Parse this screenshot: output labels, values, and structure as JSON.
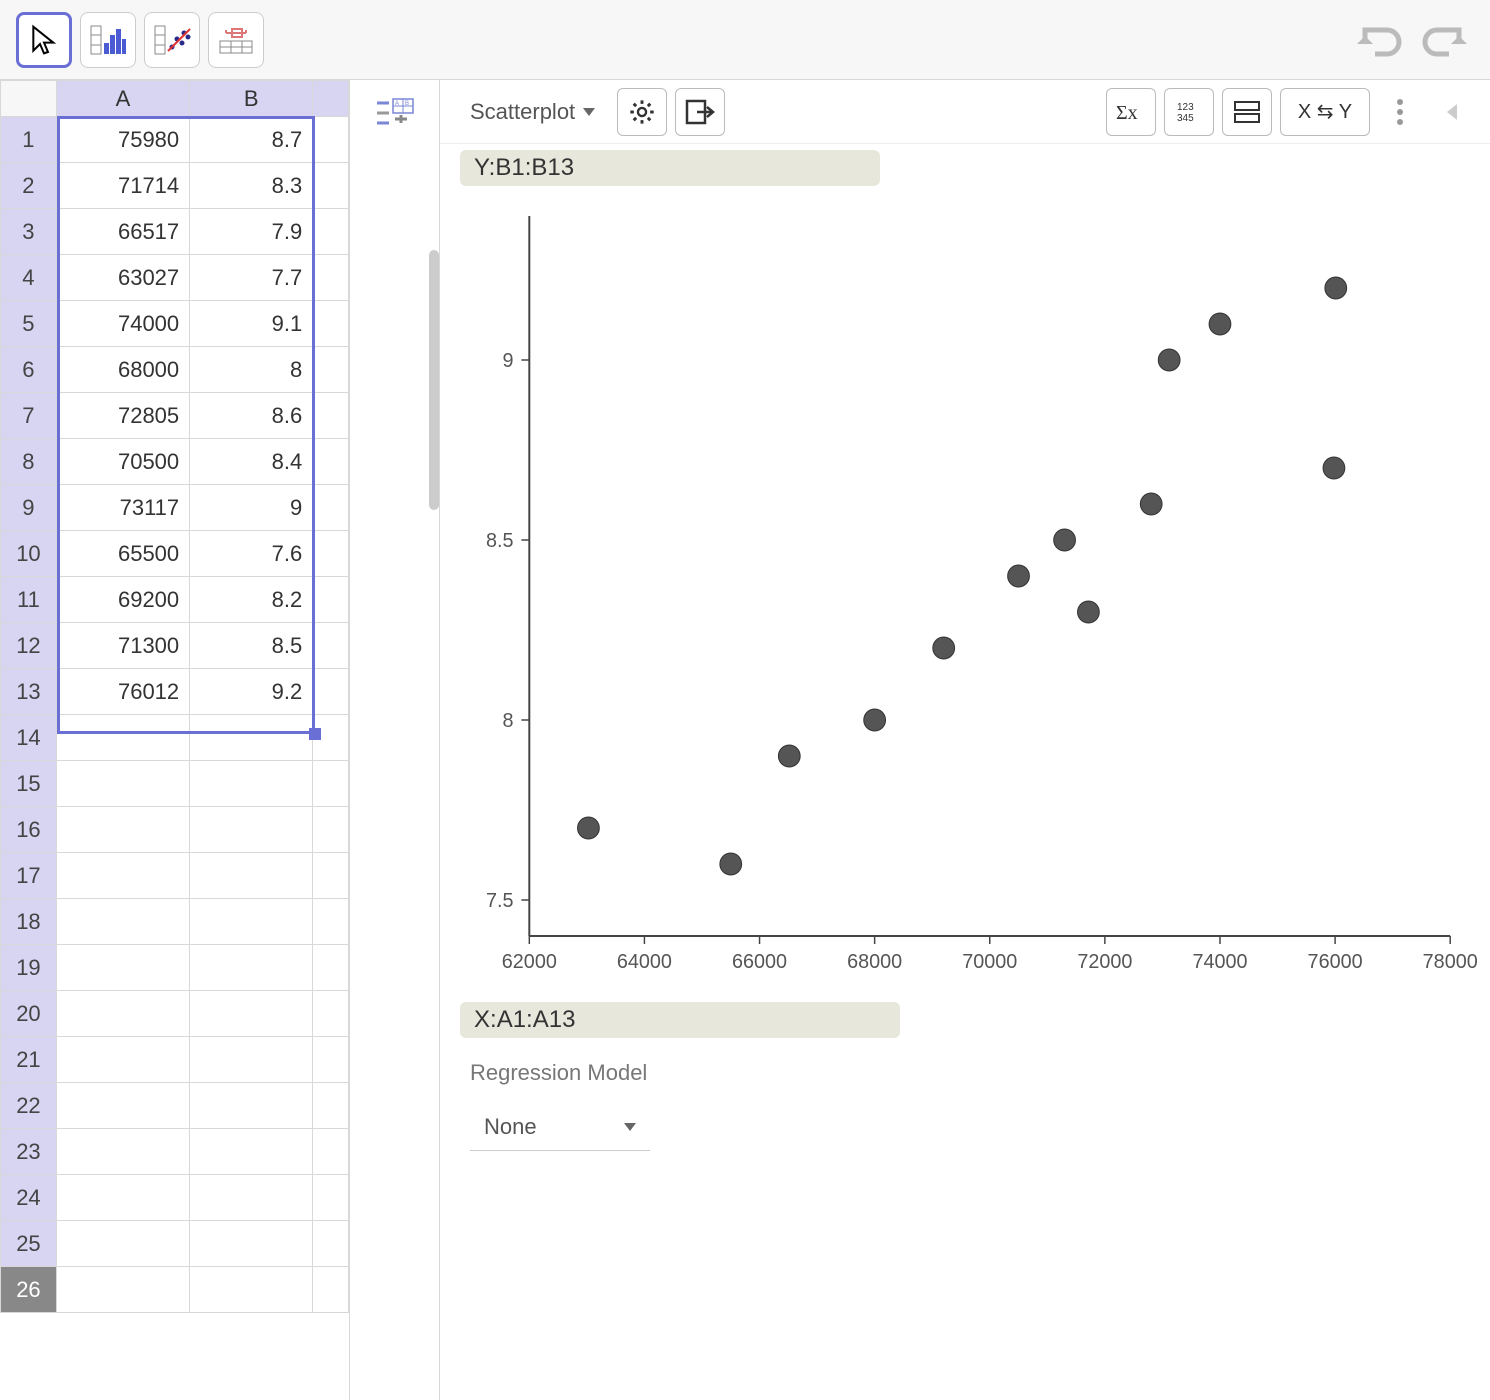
{
  "toolbar": {
    "tools": [
      {
        "name": "pointer-tool",
        "active": true
      },
      {
        "name": "one-var-tool",
        "active": false
      },
      {
        "name": "two-var-tool",
        "active": false
      },
      {
        "name": "multi-var-tool",
        "active": false
      }
    ]
  },
  "spreadsheet": {
    "columns": [
      "A",
      "B"
    ],
    "rows": [
      {
        "n": 1,
        "a": "75980",
        "b": "8.7"
      },
      {
        "n": 2,
        "a": "71714",
        "b": "8.3"
      },
      {
        "n": 3,
        "a": "66517",
        "b": "7.9"
      },
      {
        "n": 4,
        "a": "63027",
        "b": "7.7"
      },
      {
        "n": 5,
        "a": "74000",
        "b": "9.1"
      },
      {
        "n": 6,
        "a": "68000",
        "b": "8"
      },
      {
        "n": 7,
        "a": "72805",
        "b": "8.6"
      },
      {
        "n": 8,
        "a": "70500",
        "b": "8.4"
      },
      {
        "n": 9,
        "a": "73117",
        "b": "9"
      },
      {
        "n": 10,
        "a": "65500",
        "b": "7.6"
      },
      {
        "n": 11,
        "a": "69200",
        "b": "8.2"
      },
      {
        "n": 12,
        "a": "71300",
        "b": "8.5"
      },
      {
        "n": 13,
        "a": "76012",
        "b": "9.2"
      }
    ],
    "empty_rows": [
      14,
      15,
      16,
      17,
      18,
      19,
      20,
      21,
      22,
      23,
      24,
      25,
      26
    ],
    "selection": {
      "top_row": 1,
      "bottom_row": 13,
      "cols": [
        "A",
        "B"
      ]
    }
  },
  "chart": {
    "type_label": "Scatterplot",
    "swap_label": "X ⇆ Y",
    "y_label_prefix": "Y:",
    "y_label": "B1:B13",
    "x_label_prefix": "X:",
    "x_label": "A1:A13",
    "scatter": {
      "type": "scatter",
      "x_range": [
        62000,
        78000
      ],
      "y_range": [
        7.4,
        9.4
      ],
      "x_ticks": [
        62000,
        64000,
        66000,
        68000,
        70000,
        72000,
        74000,
        76000,
        78000
      ],
      "y_ticks": [
        7.5,
        8,
        8.5,
        9
      ],
      "points": [
        {
          "x": 75980,
          "y": 8.7
        },
        {
          "x": 71714,
          "y": 8.3
        },
        {
          "x": 66517,
          "y": 7.9
        },
        {
          "x": 63027,
          "y": 7.7
        },
        {
          "x": 74000,
          "y": 9.1
        },
        {
          "x": 68000,
          "y": 8.0
        },
        {
          "x": 72805,
          "y": 8.6
        },
        {
          "x": 70500,
          "y": 8.4
        },
        {
          "x": 73117,
          "y": 9.0
        },
        {
          "x": 65500,
          "y": 7.6
        },
        {
          "x": 69200,
          "y": 8.2
        },
        {
          "x": 71300,
          "y": 8.5
        },
        {
          "x": 76012,
          "y": 9.2
        }
      ],
      "point_color": "#555555",
      "point_stroke": "#333333",
      "point_radius": 11,
      "axis_color": "#444444",
      "background": "#ffffff",
      "tick_fontsize": 20
    },
    "regression": {
      "title": "Regression Model",
      "selected": "None"
    }
  }
}
